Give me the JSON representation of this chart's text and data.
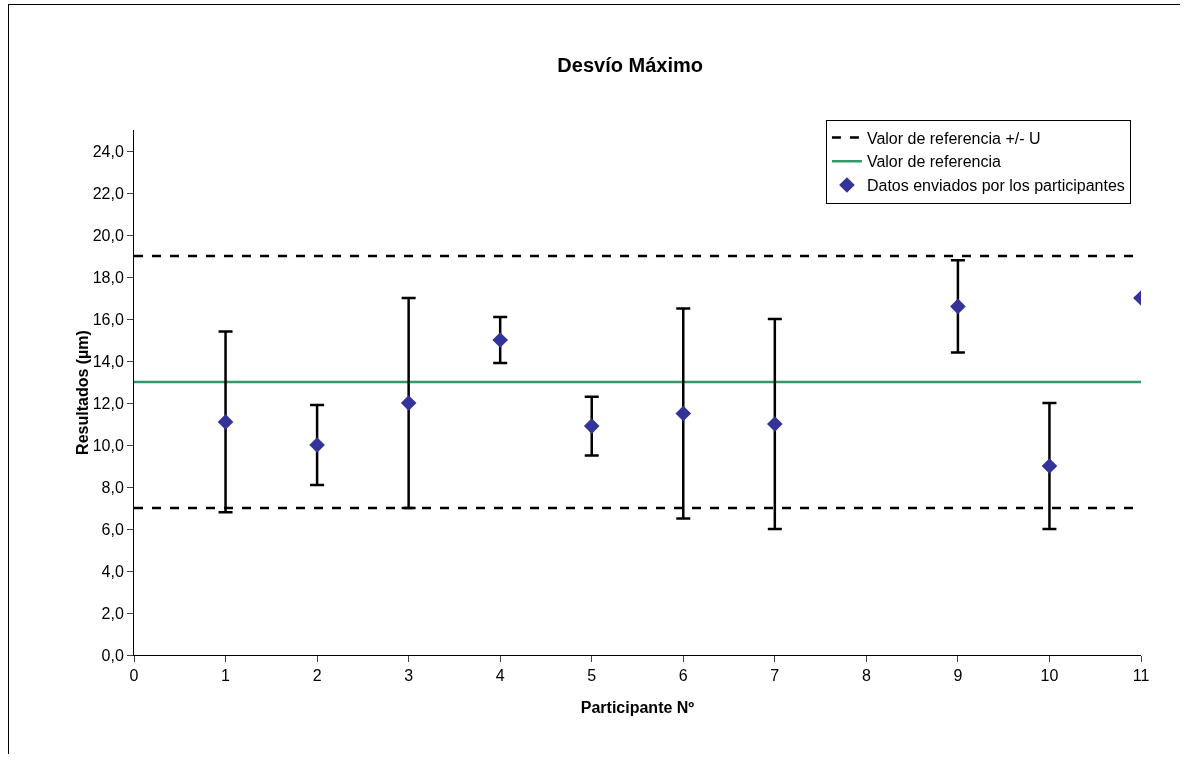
{
  "chart_data": {
    "type": "scatter",
    "title": "Desvío Máximo",
    "xlabel": "Participante Nº",
    "ylabel": "Resultados (µm)",
    "x": [
      1,
      2,
      3,
      4,
      5,
      6,
      7,
      9,
      10,
      11
    ],
    "series": [
      {
        "name": "Datos enviados por los participantes",
        "color": "#333399",
        "values": [
          11.1,
          10.0,
          12.0,
          15.0,
          10.9,
          11.5,
          11.0,
          16.6,
          9.0,
          17.0
        ],
        "errors": [
          [
            6.8,
            15.4
          ],
          [
            8.1,
            11.9
          ],
          [
            7.0,
            17.0
          ],
          [
            13.9,
            16.1
          ],
          [
            9.5,
            12.3
          ],
          [
            6.5,
            16.5
          ],
          [
            6.0,
            16.0
          ],
          [
            14.4,
            18.8
          ],
          [
            6.0,
            12.0
          ],
          null
        ]
      }
    ],
    "ref_lines": [
      {
        "axis": "y",
        "value": 19,
        "label": "Valor de referencia +/- U",
        "color": "#000000",
        "line_style": "dashed"
      },
      {
        "axis": "y",
        "value": 7,
        "color": "#000000",
        "line_style": "dashed"
      },
      {
        "axis": "y",
        "value": 13,
        "label": "Valor de referencia",
        "color": "#339966",
        "line_style": "solid"
      }
    ],
    "xlim": [
      0,
      11
    ],
    "xticks": [
      0,
      1,
      2,
      3,
      4,
      5,
      6,
      7,
      8,
      9,
      10,
      11
    ],
    "ylim": [
      0,
      25
    ],
    "yticks": [
      {
        "value": 0,
        "label": "0,0"
      },
      {
        "value": 2,
        "label": "2,0"
      },
      {
        "value": 4,
        "label": "4,0"
      },
      {
        "value": 6,
        "label": "6,0"
      },
      {
        "value": 8,
        "label": "8,0"
      },
      {
        "value": 10,
        "label": "10,0"
      },
      {
        "value": 12,
        "label": "12,0"
      },
      {
        "value": 14,
        "label": "14,0"
      },
      {
        "value": 16,
        "label": "16,0"
      },
      {
        "value": 18,
        "label": "18,0"
      },
      {
        "value": 20,
        "label": "20,0"
      },
      {
        "value": 22,
        "label": "22,0"
      },
      {
        "value": 24,
        "label": "24,0"
      }
    ],
    "grid": false,
    "legend": "top right",
    "marker": "diamond"
  }
}
